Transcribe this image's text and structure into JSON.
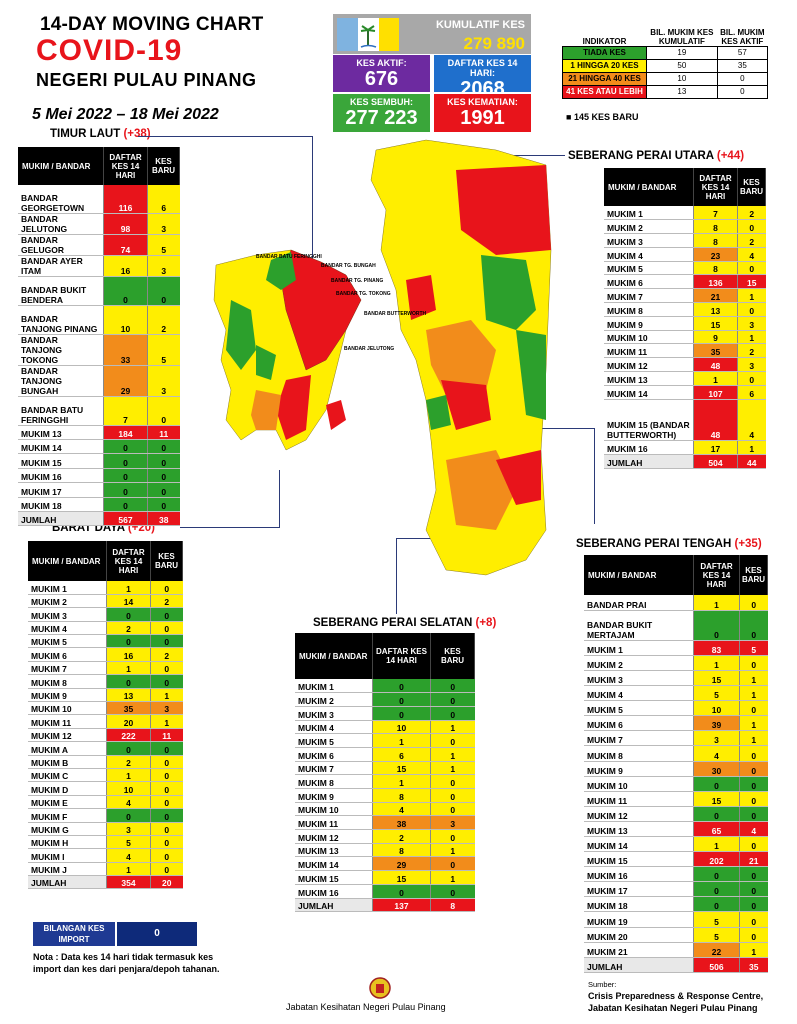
{
  "header": {
    "line1": "14-DAY MOVING CHART",
    "line2": "COVID-19",
    "line3": "NEGERI PULAU PINANG",
    "dates": "5 Mei 2022 – 18 Mei 2022"
  },
  "stats": {
    "kumulatif_label": "KUMULATIF KES",
    "kumulatif_value": "279 890",
    "aktif_label": "KES AKTIF:",
    "aktif_value": "676",
    "daftar_label": "DAFTAR KES 14 HARI:",
    "daftar_value": "2068",
    "sembuh_label": "KES SEMBUH:",
    "sembuh_value": "277 223",
    "kematian_label": "KES KEMATIAN:",
    "kematian_value": "1991"
  },
  "legend": {
    "h_indikator": "INDIKATOR",
    "h_kumulatif": "BIL. MUKIM KES KUMULATIF",
    "h_aktif": "BIL. MUKIM KES AKTIF",
    "rows": [
      {
        "label": "TIADA KES",
        "kum": "19",
        "akt": "57",
        "color": "#2ca02c"
      },
      {
        "label": "1 HINGGA 20 KES",
        "kum": "50",
        "akt": "35",
        "color": "#ffee00"
      },
      {
        "label": "21 HINGGA 40 KES",
        "kum": "10",
        "akt": "0",
        "color": "#f28c1b"
      },
      {
        "label": "41 KES ATAU LEBIH",
        "kum": "13",
        "akt": "0",
        "color": "#e8141b"
      }
    ],
    "baru": "145 KES BARU"
  },
  "col_mukim": "MUKIM / BANDAR",
  "col_daftar": "DAFTAR KES 14 HARI",
  "col_baru": "KES BARU",
  "jumlah": "JUMLAH",
  "timur_laut": {
    "title": "TIMUR LAUT",
    "plus": "(+38)",
    "rows": [
      [
        "BANDAR GEORGETOWN",
        "116",
        "6",
        "r",
        "y",
        2
      ],
      [
        "BANDAR JELUTONG",
        "98",
        "3",
        "r",
        "y",
        1
      ],
      [
        "BANDAR GELUGOR",
        "74",
        "5",
        "r",
        "y",
        1
      ],
      [
        "BANDAR AYER ITAM",
        "16",
        "3",
        "y",
        "y",
        1
      ],
      [
        "BANDAR BUKIT BENDERA",
        "0",
        "0",
        "g",
        "g",
        2
      ],
      [
        "BANDAR TANJONG PINANG",
        "10",
        "2",
        "y",
        "y",
        2
      ],
      [
        "BANDAR TANJONG TOKONG",
        "33",
        "5",
        "o",
        "y",
        2
      ],
      [
        "BANDAR TANJONG BUNGAH",
        "29",
        "3",
        "o",
        "y",
        2
      ],
      [
        "BANDAR BATU FERINGGHI",
        "7",
        "0",
        "y",
        "y",
        2
      ],
      [
        "MUKIM 13",
        "184",
        "11",
        "r",
        "r",
        1
      ],
      [
        "MUKIM 14",
        "0",
        "0",
        "g",
        "g",
        1
      ],
      [
        "MUKIM 15",
        "0",
        "0",
        "g",
        "g",
        1
      ],
      [
        "MUKIM 16",
        "0",
        "0",
        "g",
        "g",
        1
      ],
      [
        "MUKIM 17",
        "0",
        "0",
        "g",
        "g",
        1
      ],
      [
        "MUKIM 18",
        "0",
        "0",
        "g",
        "g",
        1
      ]
    ],
    "total": [
      "567",
      "38"
    ]
  },
  "barat_daya": {
    "title": "BARAT DAYA",
    "plus": "(+20)",
    "rows": [
      [
        "MUKIM 1",
        "1",
        "0",
        "y",
        "y"
      ],
      [
        "MUKIM 2",
        "14",
        "2",
        "y",
        "y"
      ],
      [
        "MUKIM 3",
        "0",
        "0",
        "g",
        "g"
      ],
      [
        "MUKIM 4",
        "2",
        "0",
        "y",
        "y"
      ],
      [
        "MUKIM 5",
        "0",
        "0",
        "g",
        "g"
      ],
      [
        "MUKIM 6",
        "16",
        "2",
        "y",
        "y"
      ],
      [
        "MUKIM 7",
        "1",
        "0",
        "y",
        "y"
      ],
      [
        "MUKIM 8",
        "0",
        "0",
        "g",
        "g"
      ],
      [
        "MUKIM 9",
        "13",
        "1",
        "y",
        "y"
      ],
      [
        "MUKIM 10",
        "35",
        "3",
        "o",
        "o"
      ],
      [
        "MUKIM 11",
        "20",
        "1",
        "y",
        "y"
      ],
      [
        "MUKIM 12",
        "222",
        "11",
        "r",
        "r"
      ],
      [
        "MUKIM A",
        "0",
        "0",
        "g",
        "g"
      ],
      [
        "MUKIM B",
        "2",
        "0",
        "y",
        "y"
      ],
      [
        "MUKIM C",
        "1",
        "0",
        "y",
        "y"
      ],
      [
        "MUKIM D",
        "10",
        "0",
        "y",
        "y"
      ],
      [
        "MUKIM E",
        "4",
        "0",
        "y",
        "y"
      ],
      [
        "MUKIM F",
        "0",
        "0",
        "g",
        "g"
      ],
      [
        "MUKIM G",
        "3",
        "0",
        "y",
        "y"
      ],
      [
        "MUKIM H",
        "5",
        "0",
        "y",
        "y"
      ],
      [
        "MUKIM I",
        "4",
        "0",
        "y",
        "y"
      ],
      [
        "MUKIM J",
        "1",
        "0",
        "y",
        "y"
      ]
    ],
    "total": [
      "354",
      "20"
    ]
  },
  "spu": {
    "title": "SEBERANG PERAI UTARA",
    "plus": "(+44)",
    "rows": [
      [
        "MUKIM 1",
        "7",
        "2",
        "y",
        "y",
        1
      ],
      [
        "MUKIM 2",
        "8",
        "0",
        "y",
        "y",
        1
      ],
      [
        "MUKIM 3",
        "8",
        "2",
        "y",
        "y",
        1
      ],
      [
        "MUKIM 4",
        "23",
        "4",
        "o",
        "y",
        1
      ],
      [
        "MUKIM 5",
        "8",
        "0",
        "y",
        "y",
        1
      ],
      [
        "MUKIM 6",
        "136",
        "15",
        "r",
        "r",
        1
      ],
      [
        "MUKIM 7",
        "21",
        "1",
        "o",
        "y",
        1
      ],
      [
        "MUKIM 8",
        "13",
        "0",
        "y",
        "y",
        1
      ],
      [
        "MUKIM 9",
        "15",
        "3",
        "y",
        "y",
        1
      ],
      [
        "MUKIM 10",
        "9",
        "1",
        "y",
        "y",
        1
      ],
      [
        "MUKIM 11",
        "35",
        "2",
        "o",
        "y",
        1
      ],
      [
        "MUKIM 12",
        "48",
        "3",
        "r",
        "y",
        1
      ],
      [
        "MUKIM 13",
        "1",
        "0",
        "y",
        "y",
        1
      ],
      [
        "MUKIM 14",
        "107",
        "6",
        "r",
        "y",
        1
      ],
      [
        "MUKIM 15 (BANDAR BUTTERWORTH)",
        "48",
        "4",
        "r",
        "y",
        3
      ],
      [
        "MUKIM 16",
        "17",
        "1",
        "y",
        "y",
        1
      ]
    ],
    "total": [
      "504",
      "44"
    ]
  },
  "sps": {
    "title": "SEBERANG PERAI SELATAN",
    "plus": "(+8)",
    "rows": [
      [
        "MUKIM 1",
        "0",
        "0",
        "g",
        "g"
      ],
      [
        "MUKIM 2",
        "0",
        "0",
        "g",
        "g"
      ],
      [
        "MUKIM 3",
        "0",
        "0",
        "g",
        "g"
      ],
      [
        "MUKIM 4",
        "10",
        "1",
        "y",
        "y"
      ],
      [
        "MUKIM 5",
        "1",
        "0",
        "y",
        "y"
      ],
      [
        "MUKIM 6",
        "6",
        "1",
        "y",
        "y"
      ],
      [
        "MUKIM 7",
        "15",
        "1",
        "y",
        "y"
      ],
      [
        "MUKIM 8",
        "1",
        "0",
        "y",
        "y"
      ],
      [
        "MUKIM 9",
        "8",
        "0",
        "y",
        "y"
      ],
      [
        "MUKIM 10",
        "4",
        "0",
        "y",
        "y"
      ],
      [
        "MUKIM 11",
        "38",
        "3",
        "o",
        "o"
      ],
      [
        "MUKIM 12",
        "2",
        "0",
        "y",
        "y"
      ],
      [
        "MUKIM 13",
        "8",
        "1",
        "y",
        "y"
      ],
      [
        "MUKIM 14",
        "29",
        "0",
        "o",
        "o"
      ],
      [
        "MUKIM 15",
        "15",
        "1",
        "y",
        "y"
      ],
      [
        "MUKIM 16",
        "0",
        "0",
        "g",
        "g"
      ]
    ],
    "total": [
      "137",
      "8"
    ]
  },
  "spt": {
    "title": "SEBERANG PERAI TENGAH",
    "plus": "(+35)",
    "rows": [
      [
        "BANDAR PRAI",
        "1",
        "0",
        "y",
        "y",
        1
      ],
      [
        "BANDAR BUKIT MERTAJAM",
        "0",
        "0",
        "g",
        "g",
        2
      ],
      [
        "MUKIM 1",
        "83",
        "5",
        "r",
        "r",
        1
      ],
      [
        "MUKIM 2",
        "1",
        "0",
        "y",
        "y",
        1
      ],
      [
        "MUKIM 3",
        "15",
        "1",
        "y",
        "y",
        1
      ],
      [
        "MUKIM 4",
        "5",
        "1",
        "y",
        "y",
        1
      ],
      [
        "MUKIM 5",
        "10",
        "0",
        "y",
        "y",
        1
      ],
      [
        "MUKIM 6",
        "39",
        "1",
        "o",
        "y",
        1
      ],
      [
        "MUKIM 7",
        "3",
        "1",
        "y",
        "y",
        1
      ],
      [
        "MUKIM 8",
        "4",
        "0",
        "y",
        "y",
        1
      ],
      [
        "MUKIM 9",
        "30",
        "0",
        "o",
        "o",
        1
      ],
      [
        "MUKIM 10",
        "0",
        "0",
        "g",
        "g",
        1
      ],
      [
        "MUKIM 11",
        "15",
        "0",
        "y",
        "y",
        1
      ],
      [
        "MUKIM 12",
        "0",
        "0",
        "g",
        "g",
        1
      ],
      [
        "MUKIM 13",
        "65",
        "4",
        "r",
        "r",
        1
      ],
      [
        "MUKIM 14",
        "1",
        "0",
        "y",
        "y",
        1
      ],
      [
        "MUKIM 15",
        "202",
        "21",
        "r",
        "r",
        1
      ],
      [
        "MUKIM 16",
        "0",
        "0",
        "g",
        "g",
        1
      ],
      [
        "MUKIM 17",
        "0",
        "0",
        "g",
        "g",
        1
      ],
      [
        "MUKIM 18",
        "0",
        "0",
        "g",
        "g",
        1
      ],
      [
        "MUKIM 19",
        "5",
        "0",
        "y",
        "y",
        1
      ],
      [
        "MUKIM 20",
        "5",
        "0",
        "y",
        "y",
        1
      ],
      [
        "MUKIM 21",
        "22",
        "1",
        "o",
        "y",
        1
      ]
    ],
    "total": [
      "506",
      "35"
    ]
  },
  "import": {
    "label": "BILANGAN KES IMPORT",
    "value": "0"
  },
  "nota": "Nota : Data kes 14 hari tidak termasuk kes import dan kes dari penjara/depoh tahanan.",
  "footer": "Jabatan Kesihatan Negeri Pulau Pinang",
  "sumber": "Sumber:",
  "cprc_1": "Crisis Preparedness & Response Centre,",
  "cprc_2": "Jabatan Kesihatan Negeri Pulau Pinang",
  "map_labels": {
    "bandar_batu_feringghi": "BANDAR BATU FERINGGHI",
    "bandar_tg_bungah": "BANDAR TG. BUNGAH",
    "bandar_tg_pinang": "BANDAR TG. PINANG",
    "bandar_tg_tokong": "BANDAR TG. TOKONG",
    "bandar_jelutong": "BANDAR JELUTONG",
    "bandar_butterworth": "BANDAR BUTTERWORTH"
  }
}
